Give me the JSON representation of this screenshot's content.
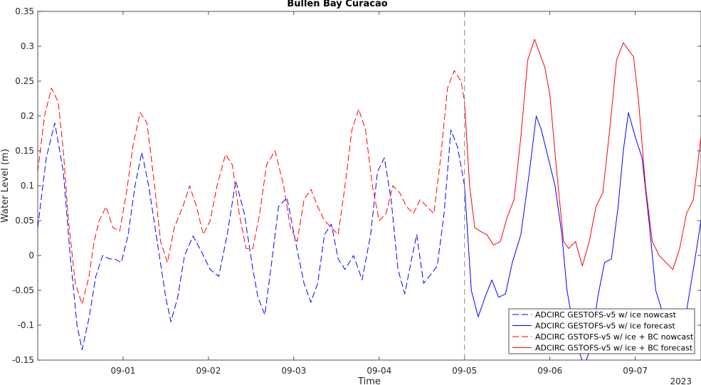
{
  "chart_data": {
    "type": "line",
    "title": "Bullen Bay Curacao",
    "xlabel": "Time",
    "ylabel": "Water Level (m)",
    "year_label": "2023",
    "xlim": [
      0,
      7.77
    ],
    "ylim": [
      -0.15,
      0.35
    ],
    "x_unit": "days since 2023-08-31 00:00",
    "x_ticks": [
      1,
      2,
      3,
      4,
      5,
      6,
      7
    ],
    "x_tick_labels": [
      "09-01",
      "09-02",
      "09-03",
      "09-04",
      "09-05",
      "09-06",
      "09-07"
    ],
    "y_ticks": [
      -0.15,
      -0.1,
      -0.05,
      0,
      0.05,
      0.1,
      0.15,
      0.2,
      0.25,
      0.3,
      0.35
    ],
    "y_tick_labels": [
      "-0.15",
      "-0.1",
      "-0.05",
      "0",
      "0.05",
      "0.1",
      "0.15",
      "0.2",
      "0.25",
      "0.3",
      "0.35"
    ],
    "nowcast_forecast_boundary_x": 5.0,
    "legend_position": "bottom-right",
    "grid": false,
    "series": [
      {
        "name": "ADCIRC GESTOFS-v5 w/ ice nowcast",
        "color": "#0000ff",
        "style": "dashed",
        "x": [
          0.0,
          0.1,
          0.2,
          0.3,
          0.38,
          0.46,
          0.52,
          0.6,
          0.68,
          0.76,
          0.84,
          0.9,
          0.98,
          1.06,
          1.14,
          1.22,
          1.3,
          1.4,
          1.5,
          1.56,
          1.64,
          1.72,
          1.82,
          1.92,
          2.02,
          2.12,
          2.22,
          2.32,
          2.42,
          2.52,
          2.58,
          2.66,
          2.74,
          2.82,
          2.92,
          3.02,
          3.12,
          3.2,
          3.28,
          3.36,
          3.44,
          3.52,
          3.6,
          3.7,
          3.8,
          3.9,
          3.98,
          4.06,
          4.14,
          4.22,
          4.3,
          4.38,
          4.44,
          4.52,
          4.6,
          4.68,
          4.76,
          4.84,
          4.92,
          5.0
        ],
        "y": [
          0.04,
          0.14,
          0.19,
          0.12,
          0.0,
          -0.1,
          -0.135,
          -0.09,
          -0.03,
          0.0,
          -0.005,
          -0.005,
          -0.01,
          0.03,
          0.1,
          0.148,
          0.1,
          0.02,
          -0.06,
          -0.095,
          -0.06,
          0.0,
          0.028,
          0.005,
          -0.02,
          -0.03,
          0.03,
          0.107,
          0.06,
          -0.02,
          -0.06,
          -0.085,
          -0.01,
          0.07,
          0.083,
          0.02,
          -0.04,
          -0.067,
          -0.04,
          0.03,
          0.045,
          -0.005,
          -0.02,
          0.0,
          -0.035,
          0.03,
          0.12,
          0.14,
          0.08,
          -0.02,
          -0.055,
          -0.005,
          0.03,
          -0.04,
          -0.028,
          -0.015,
          0.06,
          0.18,
          0.155,
          0.1
        ]
      },
      {
        "name": "ADCIRC GESTOFS-v5 w/ ice forecast",
        "color": "#0000ff",
        "style": "solid",
        "x": [
          5.0,
          5.08,
          5.16,
          5.24,
          5.32,
          5.4,
          5.48,
          5.56,
          5.66,
          5.76,
          5.84,
          5.9,
          5.98,
          6.06,
          6.14,
          6.2,
          6.3,
          6.4,
          6.48,
          6.56,
          6.64,
          6.72,
          6.8,
          6.86,
          6.92,
          7.0,
          7.08,
          7.16,
          7.24,
          7.34,
          7.44,
          7.52,
          7.6,
          7.68,
          7.77
        ],
        "y": [
          0.1,
          -0.05,
          -0.088,
          -0.06,
          -0.035,
          -0.06,
          -0.055,
          -0.01,
          0.03,
          0.12,
          0.2,
          0.18,
          0.14,
          0.1,
          0.03,
          -0.05,
          -0.12,
          -0.16,
          -0.13,
          -0.06,
          -0.01,
          -0.005,
          0.07,
          0.15,
          0.205,
          0.17,
          0.14,
          0.05,
          -0.05,
          -0.09,
          -0.12,
          -0.14,
          -0.08,
          -0.02,
          0.05
        ]
      },
      {
        "name": "ADCIRC GSTOFS-v5 w/ ice + BC nowcast",
        "color": "#ff0000",
        "style": "dashed",
        "x": [
          0.0,
          0.08,
          0.16,
          0.24,
          0.3,
          0.36,
          0.44,
          0.52,
          0.6,
          0.66,
          0.72,
          0.8,
          0.88,
          0.96,
          1.04,
          1.12,
          1.2,
          1.28,
          1.36,
          1.44,
          1.52,
          1.6,
          1.7,
          1.78,
          1.86,
          1.94,
          2.02,
          2.1,
          2.2,
          2.28,
          2.36,
          2.44,
          2.52,
          2.6,
          2.68,
          2.78,
          2.88,
          2.96,
          3.04,
          3.12,
          3.2,
          3.28,
          3.36,
          3.44,
          3.52,
          3.6,
          3.68,
          3.76,
          3.84,
          3.92,
          4.0,
          4.08,
          4.16,
          4.24,
          4.32,
          4.4,
          4.48,
          4.56,
          4.64,
          4.72,
          4.8,
          4.88,
          4.96,
          5.0
        ],
        "y": [
          0.12,
          0.2,
          0.24,
          0.22,
          0.15,
          0.05,
          -0.04,
          -0.07,
          -0.03,
          0.02,
          0.05,
          0.07,
          0.04,
          0.035,
          0.09,
          0.16,
          0.205,
          0.19,
          0.11,
          0.02,
          -0.01,
          0.04,
          0.07,
          0.1,
          0.07,
          0.03,
          0.05,
          0.1,
          0.145,
          0.13,
          0.06,
          0.01,
          0.01,
          0.06,
          0.13,
          0.15,
          0.1,
          0.04,
          0.02,
          0.08,
          0.095,
          0.07,
          0.05,
          0.04,
          0.03,
          0.1,
          0.18,
          0.21,
          0.18,
          0.1,
          0.05,
          0.06,
          0.1,
          0.09,
          0.07,
          0.06,
          0.08,
          0.07,
          0.06,
          0.14,
          0.24,
          0.265,
          0.25,
          0.22
        ]
      },
      {
        "name": "ADCIRC GSTOFS-v5 w/ ice + BC forecast",
        "color": "#ff0000",
        "style": "solid",
        "x": [
          5.0,
          5.06,
          5.12,
          5.18,
          5.26,
          5.34,
          5.42,
          5.5,
          5.58,
          5.66,
          5.74,
          5.82,
          5.88,
          5.94,
          6.0,
          6.08,
          6.16,
          6.22,
          6.3,
          6.38,
          6.46,
          6.54,
          6.62,
          6.7,
          6.78,
          6.86,
          6.92,
          6.98,
          7.04,
          7.12,
          7.2,
          7.28,
          7.36,
          7.44,
          7.52,
          7.6,
          7.68,
          7.77
        ],
        "y": [
          0.22,
          0.1,
          0.04,
          0.035,
          0.03,
          0.015,
          0.02,
          0.055,
          0.08,
          0.17,
          0.28,
          0.31,
          0.29,
          0.27,
          0.23,
          0.12,
          0.02,
          0.01,
          0.02,
          -0.015,
          0.02,
          0.07,
          0.09,
          0.18,
          0.28,
          0.305,
          0.295,
          0.285,
          0.22,
          0.1,
          0.02,
          0.0,
          -0.01,
          -0.02,
          0.01,
          0.06,
          0.08,
          0.17
        ]
      }
    ]
  }
}
